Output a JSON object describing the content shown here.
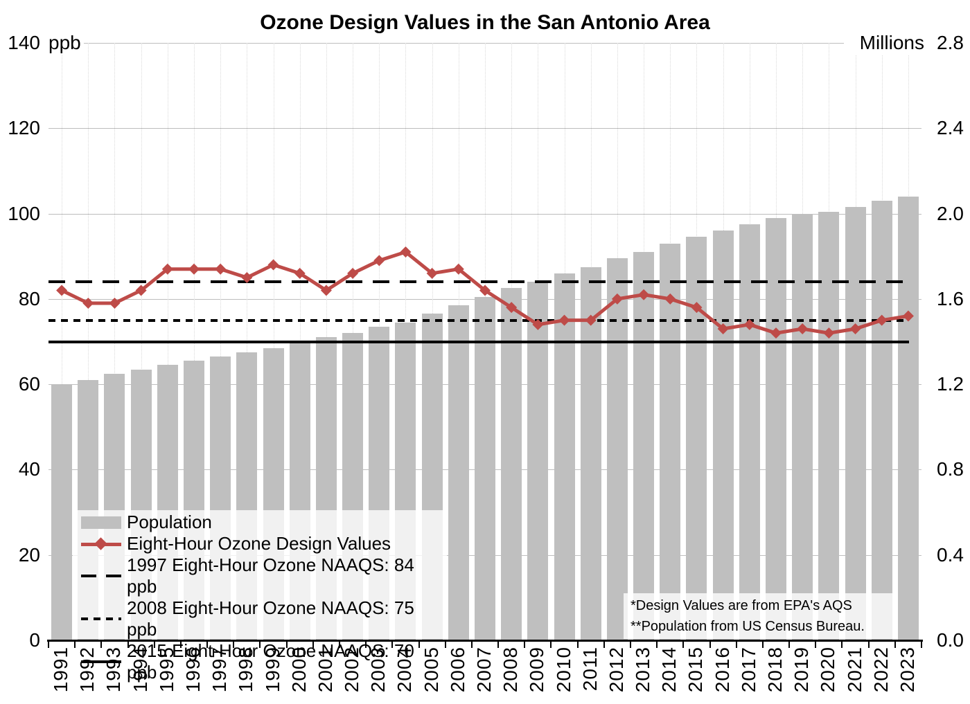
{
  "title": "Ozone Design Values in the San Antonio Area",
  "left_axis": {
    "unit": "ppb",
    "ticks": [
      "140",
      "120",
      "100",
      "80",
      "60",
      "40",
      "20",
      "0"
    ]
  },
  "right_axis": {
    "unit": "Millions",
    "ticks": [
      "2.8",
      "2.4",
      "2.0",
      "1.6",
      "1.2",
      "0.8",
      "0.4",
      "0.0"
    ]
  },
  "legend": {
    "items": [
      {
        "label": "Population",
        "swatch": "bar"
      },
      {
        "label": "Eight-Hour Ozone Design Values",
        "swatch": "line-diamond"
      },
      {
        "label": "1997 Eight-Hour Ozone NAAQS: 84 ppb",
        "swatch": "long-dash"
      },
      {
        "label": "2008 Eight-Hour Ozone NAAQS: 75 ppb",
        "swatch": "short-dash"
      },
      {
        "label": "2015 Eight-Hour Ozone NAAQS: 70 ppb",
        "swatch": "solid"
      }
    ]
  },
  "annotation": {
    "line1": "*Design Values are from EPA's AQS",
    "line2": "**Population from US Census Bureau."
  },
  "colors": {
    "bar": "#BFBFBF",
    "line": "#BE4B48",
    "reference": "#000000",
    "gridline": "#bdbdbd"
  },
  "chart_data": {
    "type": "bar+line",
    "title": "Ozone Design Values in the San Antonio Area",
    "categories": [
      1991,
      1992,
      1993,
      1994,
      1995,
      1996,
      1997,
      1998,
      1999,
      2000,
      2001,
      2002,
      2003,
      2004,
      2005,
      2006,
      2007,
      2008,
      2009,
      2010,
      2011,
      2012,
      2013,
      2014,
      2015,
      2016,
      2017,
      2018,
      2019,
      2020,
      2021,
      2022,
      2023
    ],
    "series": [
      {
        "name": "Population",
        "type": "bar",
        "axis": "right",
        "unit": "millions",
        "color": "#BFBFBF",
        "values": [
          1.2,
          1.22,
          1.25,
          1.27,
          1.29,
          1.31,
          1.33,
          1.35,
          1.37,
          1.4,
          1.42,
          1.44,
          1.47,
          1.49,
          1.53,
          1.57,
          1.61,
          1.65,
          1.68,
          1.72,
          1.75,
          1.79,
          1.82,
          1.86,
          1.89,
          1.92,
          1.95,
          1.98,
          2.0,
          2.01,
          2.03,
          2.06,
          2.08
        ]
      },
      {
        "name": "Eight-Hour Ozone Design Values",
        "type": "line",
        "axis": "left",
        "unit": "ppb",
        "color": "#BE4B48",
        "values": [
          82,
          79,
          79,
          82,
          87,
          87,
          87,
          85,
          88,
          86,
          82,
          86,
          89,
          91,
          86,
          87,
          82,
          78,
          74,
          75,
          75,
          80,
          81,
          80,
          78,
          73,
          74,
          72,
          73,
          72,
          73,
          75,
          76
        ]
      }
    ],
    "reference_lines": [
      {
        "label": "1997 Eight-Hour Ozone NAAQS: 84 ppb",
        "value": 84,
        "axis": "left",
        "style": "long-dash"
      },
      {
        "label": "2008 Eight-Hour Ozone NAAQS: 75 ppb",
        "value": 75,
        "axis": "left",
        "style": "short-dash"
      },
      {
        "label": "2015 Eight-Hour Ozone NAAQS: 70 ppb",
        "value": 70,
        "axis": "left",
        "style": "solid"
      }
    ],
    "left_ylabel": "ppb",
    "right_ylabel": "Millions",
    "left_ylim": [
      0,
      140
    ],
    "right_ylim": [
      0,
      2.8
    ],
    "grid": true,
    "legend_position": "inside-bottom-left",
    "source_note": "*Design Values are from EPA's AQS **Population from US Census Bureau."
  }
}
